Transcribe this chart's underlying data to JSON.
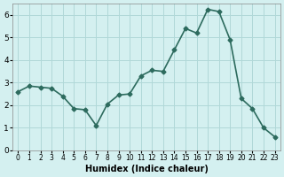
{
  "x": [
    0,
    1,
    2,
    3,
    4,
    5,
    6,
    7,
    8,
    9,
    10,
    11,
    12,
    13,
    14,
    15,
    16,
    17,
    18,
    19,
    20,
    21,
    22,
    23
  ],
  "y": [
    2.6,
    2.85,
    2.8,
    2.75,
    2.4,
    1.85,
    1.8,
    1.1,
    2.05,
    2.45,
    2.5,
    3.3,
    3.55,
    3.5,
    4.45,
    5.4,
    5.2,
    6.25,
    6.15,
    4.9,
    2.3,
    1.85,
    1.0,
    0.6
  ],
  "xlabel": "Humidex (Indice chaleur)",
  "line_color": "#2d6b5e",
  "bg_color": "#d4f0f0",
  "grid_color": "#b0d8d8",
  "ylim": [
    0,
    6.5
  ],
  "xlim": [
    -0.5,
    23.5
  ],
  "yticks": [
    0,
    1,
    2,
    3,
    4,
    5,
    6
  ],
  "xtick_labels": [
    "0",
    "1",
    "2",
    "3",
    "4",
    "5",
    "6",
    "7",
    "8",
    "9",
    "10",
    "11",
    "12",
    "13",
    "14",
    "15",
    "16",
    "17",
    "18",
    "19",
    "20",
    "21",
    "22",
    "23"
  ]
}
